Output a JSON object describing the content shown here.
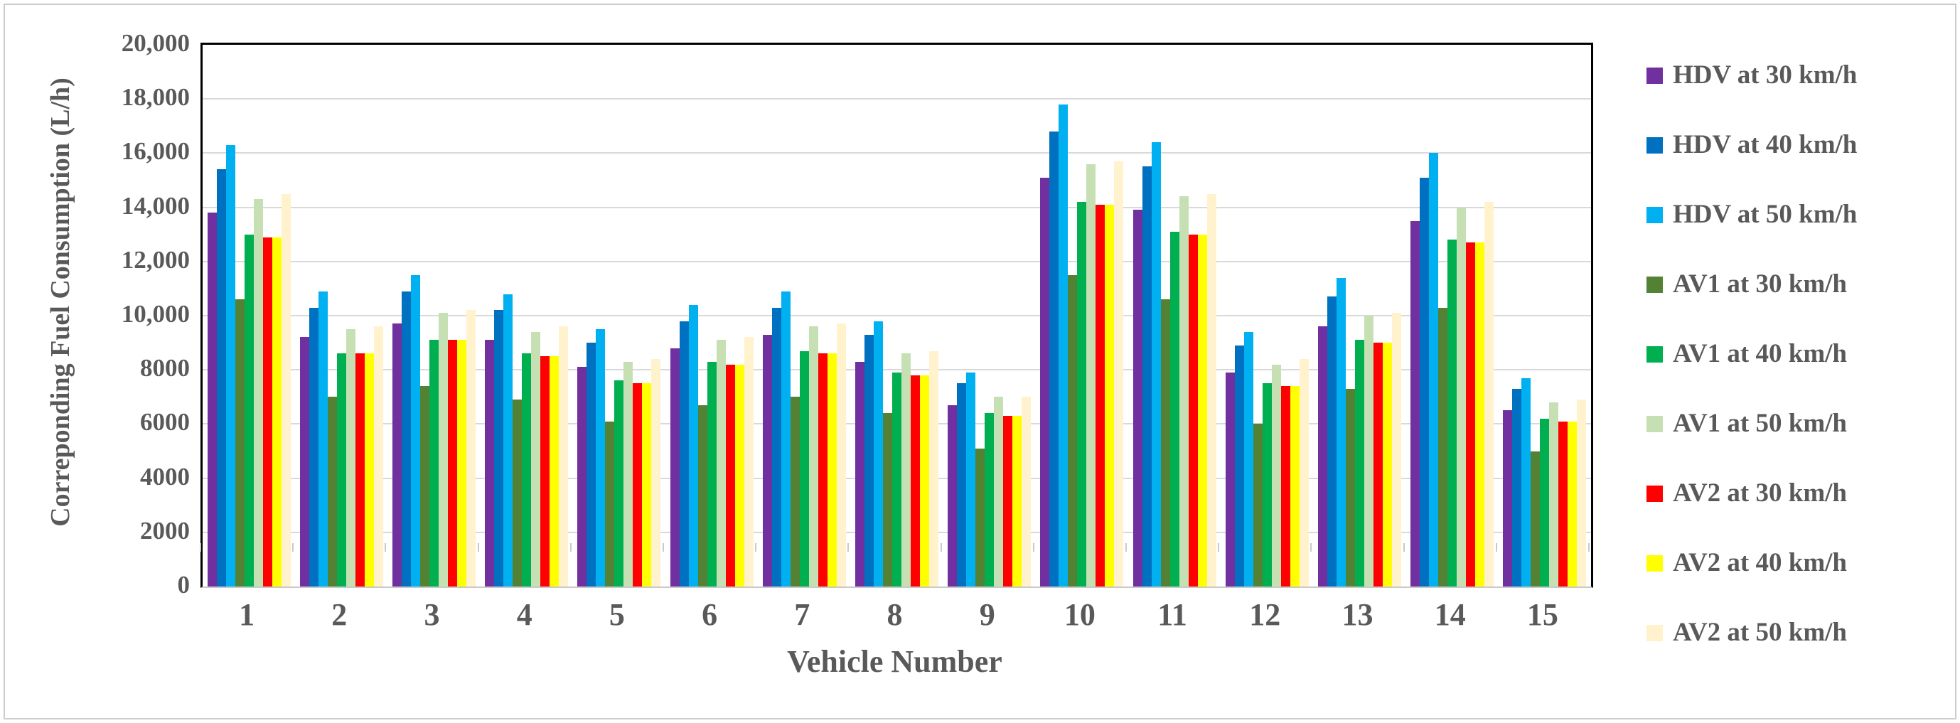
{
  "figure": {
    "background": "#ffffff",
    "frame_border_color": "#cccccc",
    "axis_line_color": "#000000",
    "gridline_color": "#d9d9d9",
    "bottom_axis_color": "#c9c9c9",
    "text_color": "#595959"
  },
  "chart_data": {
    "type": "bar",
    "title": "",
    "xlabel": "Vehicle Number",
    "ylabel": "Correponding Fuel Consumption (L/h)",
    "ylim": [
      0,
      20000
    ],
    "ytick_step": 2000,
    "ytick_labels": [
      "0",
      "2000",
      "4000",
      "6000",
      "8000",
      "10,000",
      "12,000",
      "14,000",
      "16,000",
      "18,000",
      "20,000"
    ],
    "grid": true,
    "legend_position": "right",
    "categories": [
      "1",
      "2",
      "3",
      "4",
      "5",
      "6",
      "7",
      "8",
      "9",
      "10",
      "11",
      "12",
      "13",
      "14",
      "15"
    ],
    "series": [
      {
        "name": "HDV at 30 km/h",
        "color": "#7030A0",
        "values": [
          13800,
          9200,
          9700,
          9100,
          8100,
          8800,
          9300,
          8300,
          6700,
          15100,
          13900,
          7900,
          9600,
          13500,
          6500
        ]
      },
      {
        "name": "HDV at 40 km/h",
        "color": "#0070C0",
        "values": [
          15400,
          10300,
          10900,
          10200,
          9000,
          9800,
          10300,
          9300,
          7500,
          16800,
          15500,
          8900,
          10700,
          15100,
          7300
        ]
      },
      {
        "name": "HDV at 50 km/h",
        "color": "#00B0F0",
        "values": [
          16300,
          10900,
          11500,
          10800,
          9500,
          10400,
          10900,
          9800,
          7900,
          17800,
          16400,
          9400,
          11400,
          16000,
          7700
        ]
      },
      {
        "name": "AV1 at 30 km/h",
        "color": "#548235",
        "values": [
          10600,
          7000,
          7400,
          6900,
          6100,
          6700,
          7000,
          6400,
          5100,
          11500,
          10600,
          6000,
          7300,
          10300,
          5000
        ]
      },
      {
        "name": "AV1 at 40 km/h",
        "color": "#00B050",
        "values": [
          13000,
          8600,
          9100,
          8600,
          7600,
          8300,
          8700,
          7900,
          6400,
          14200,
          13100,
          7500,
          9100,
          12800,
          6200
        ]
      },
      {
        "name": "AV1 at 50 km/h",
        "color": "#C6E0B4",
        "values": [
          14300,
          9500,
          10100,
          9400,
          8300,
          9100,
          9600,
          8600,
          7000,
          15600,
          14400,
          8200,
          10000,
          14000,
          6800
        ]
      },
      {
        "name": "AV2 at 30 km/h",
        "color": "#FF0000",
        "values": [
          12900,
          8600,
          9100,
          8500,
          7500,
          8200,
          8600,
          7800,
          6300,
          14100,
          13000,
          7400,
          9000,
          12700,
          6100
        ]
      },
      {
        "name": "AV2 at 40 km/h",
        "color": "#FFFF00",
        "values": [
          12900,
          8600,
          9100,
          8500,
          7500,
          8200,
          8600,
          7800,
          6300,
          14100,
          13000,
          7400,
          9000,
          12700,
          6100
        ]
      },
      {
        "name": "AV2 at 50 km/h",
        "color": "#FFF2CC",
        "values": [
          14500,
          9600,
          10200,
          9600,
          8400,
          9200,
          9700,
          8700,
          7000,
          15700,
          14500,
          8400,
          10100,
          14200,
          6900
        ]
      }
    ]
  }
}
